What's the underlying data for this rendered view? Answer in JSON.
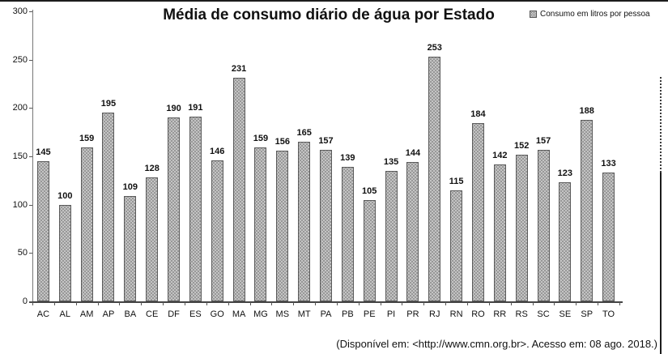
{
  "caption": "(Disponível em: <http://www.cmn.org.br>. Acesso em: 08 ago. 2018.)",
  "chart_data": {
    "type": "bar",
    "title": "Média de consumo diário de água por Estado",
    "categories": [
      "AC",
      "AL",
      "AM",
      "AP",
      "BA",
      "CE",
      "DF",
      "ES",
      "GO",
      "MA",
      "MG",
      "MS",
      "MT",
      "PA",
      "PB",
      "PE",
      "PI",
      "PR",
      "RJ",
      "RN",
      "RO",
      "RR",
      "RS",
      "SC",
      "SE",
      "SP",
      "TO"
    ],
    "values": [
      145,
      100,
      159,
      195,
      109,
      128,
      190,
      191,
      146,
      231,
      159,
      156,
      165,
      157,
      139,
      105,
      135,
      144,
      253,
      115,
      184,
      142,
      152,
      157,
      123,
      188,
      133
    ],
    "legend": [
      "Consumo em litros por pessoa"
    ],
    "legend_position": "top-right",
    "xlabel": "",
    "ylabel": "",
    "ylim": [
      0,
      300
    ],
    "yticks": [
      0,
      50,
      100,
      150,
      200,
      250,
      300
    ],
    "grid": false,
    "data_labels": true,
    "bar_color": "#c4c4c4",
    "bar_dot_color": "#6e6e6e",
    "axis_color": "#444444",
    "text_color": "#111111"
  }
}
